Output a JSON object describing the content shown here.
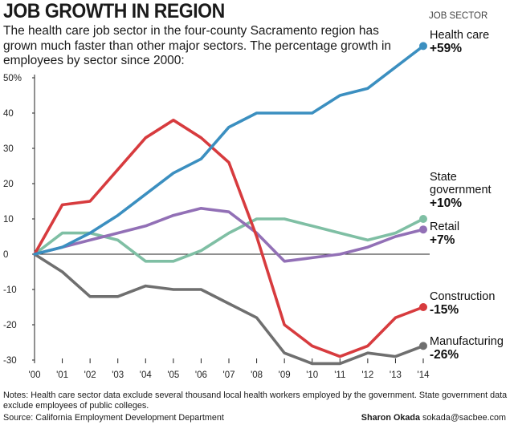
{
  "header": {
    "title": "JOB GROWTH IN REGION",
    "subtitle": "The health care job sector in the four-county Sacramento region has grown much faster than other major sectors. The percentage growth in employees by sector since 2000:",
    "legend_heading": "JOB SECTOR"
  },
  "footer": {
    "notes": "Notes: Health care sector data exclude several thousand local health workers employed by the government. State government data exclude employees of public colleges.",
    "source": "Source: California Employment Development Department",
    "credit_name": "Sharon Okada",
    "credit_email": "sokada@sacbee.com"
  },
  "chart_data": {
    "type": "line",
    "x": [
      "'00",
      "'01",
      "'02",
      "'03",
      "'04",
      "'05",
      "'06",
      "'07",
      "'08",
      "'09",
      "'10",
      "'11",
      "'12",
      "'13",
      "'14"
    ],
    "ylim": [
      -30,
      50
    ],
    "yticks": [
      50,
      40,
      30,
      20,
      10,
      0,
      -10,
      -20,
      -30
    ],
    "ytick_labels": [
      "50%",
      "40",
      "30",
      "20",
      "10",
      "0",
      "-10",
      "-20",
      "-30"
    ],
    "grid": false,
    "series": [
      {
        "name": "Health care",
        "end_label": "+59%",
        "color": "#3b8fc0",
        "values": [
          0,
          2,
          6,
          11,
          17,
          23,
          27,
          36,
          40,
          40,
          40,
          45,
          47,
          53,
          59
        ]
      },
      {
        "name": "State government",
        "end_label": "+10%",
        "color": "#7fbfa4",
        "values": [
          0,
          6,
          6,
          4,
          -2,
          -2,
          1,
          6,
          10,
          10,
          8,
          6,
          4,
          6,
          10
        ]
      },
      {
        "name": "Retail",
        "end_label": "+7%",
        "color": "#9270b6",
        "values": [
          0,
          2,
          4,
          6,
          8,
          11,
          13,
          12,
          6,
          -2,
          -1,
          0,
          2,
          5,
          7
        ]
      },
      {
        "name": "Construction",
        "end_label": "-15%",
        "color": "#d73b3e",
        "values": [
          0,
          14,
          15,
          24,
          33,
          38,
          33,
          26,
          5,
          -20,
          -26,
          -29,
          -26,
          -18,
          -15
        ]
      },
      {
        "name": "Manufacturing",
        "end_label": "-26%",
        "color": "#6f6f6f",
        "values": [
          0,
          -5,
          -12,
          -12,
          -9,
          -10,
          -10,
          -14,
          -18,
          -28,
          -31,
          -31,
          -28,
          -29,
          -26
        ]
      }
    ]
  }
}
